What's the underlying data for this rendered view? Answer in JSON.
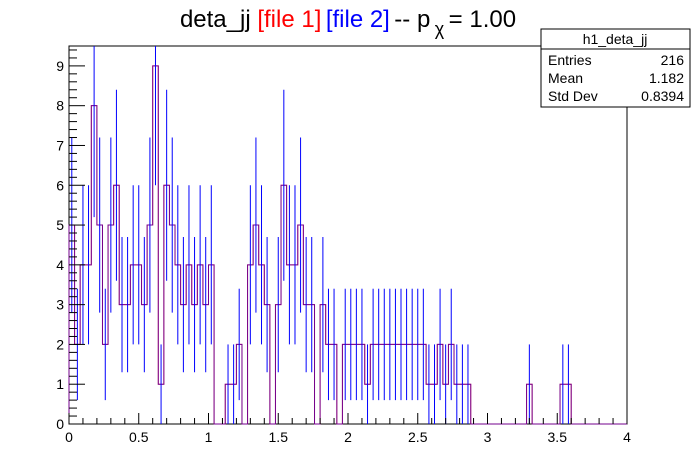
{
  "chart_data": {
    "type": "histogram",
    "title": {
      "prefix": "deta_jj ",
      "file1": "[file 1]",
      "file2": "[file 2]",
      "suffix_before_sub": " -- p",
      "subscript": "χ",
      "suffix_after_sub": " = 1.00"
    },
    "xlim": [
      0,
      4
    ],
    "ylim": [
      0,
      9.5
    ],
    "x_ticks": [
      "0",
      "0.5",
      "1",
      "1.5",
      "2",
      "2.5",
      "3",
      "3.5",
      "4"
    ],
    "y_ticks": [
      "0",
      "1",
      "2",
      "3",
      "4",
      "5",
      "6",
      "7",
      "8",
      "9"
    ],
    "bin_width": 0.04,
    "stats_box": {
      "name": "h1_deta_jj",
      "rows": [
        {
          "label": "Entries",
          "value": "216"
        },
        {
          "label": "Mean",
          "value": "1.182"
        },
        {
          "label": "Std Dev",
          "value": "0.8394"
        }
      ]
    },
    "series": [
      {
        "name": "file 1",
        "color": "#ff0000",
        "values": [
          5,
          2,
          4,
          4,
          8,
          5,
          2,
          5,
          6,
          3,
          3,
          4,
          4,
          3,
          5,
          9,
          1,
          6,
          5,
          4,
          3,
          4,
          3,
          4,
          3,
          4,
          0,
          0,
          1,
          1,
          2,
          0,
          4,
          5,
          4,
          3,
          0,
          3,
          6,
          4,
          4,
          5,
          3,
          3,
          0,
          3,
          2,
          2,
          0,
          2,
          2,
          2,
          2,
          1,
          2,
          2,
          2,
          2,
          2,
          2,
          2,
          2,
          2,
          2,
          1,
          1,
          2,
          1,
          2,
          1,
          1,
          1,
          0,
          0,
          0,
          0,
          0,
          0,
          0,
          0,
          0,
          0,
          1,
          0,
          0,
          0,
          0,
          0,
          1,
          1,
          0,
          0,
          0,
          0,
          0,
          0,
          0,
          0,
          0,
          0
        ]
      },
      {
        "name": "file 2",
        "color": "#0000ff",
        "values": [
          5,
          2,
          4,
          4,
          8,
          5,
          2,
          5,
          6,
          3,
          3,
          4,
          4,
          3,
          5,
          9,
          1,
          6,
          5,
          4,
          3,
          4,
          3,
          4,
          3,
          4,
          0,
          0,
          1,
          1,
          2,
          0,
          4,
          5,
          4,
          3,
          0,
          3,
          6,
          4,
          4,
          5,
          3,
          3,
          0,
          3,
          2,
          2,
          0,
          2,
          2,
          2,
          2,
          1,
          2,
          2,
          2,
          2,
          2,
          2,
          2,
          2,
          2,
          2,
          1,
          1,
          2,
          1,
          2,
          1,
          1,
          1,
          0,
          0,
          0,
          0,
          0,
          0,
          0,
          0,
          0,
          0,
          1,
          0,
          0,
          0,
          0,
          0,
          1,
          1,
          0,
          0,
          0,
          0,
          0,
          0,
          0,
          0,
          0,
          0
        ],
        "errors": [
          2.2,
          1.4,
          2.0,
          2.0,
          2.8,
          2.2,
          1.4,
          2.2,
          2.4,
          1.7,
          1.7,
          2.0,
          2.0,
          1.7,
          2.2,
          3.0,
          1.0,
          2.4,
          2.2,
          2.0,
          1.7,
          2.0,
          1.7,
          2.0,
          1.7,
          2.0,
          0,
          0,
          1.0,
          1.0,
          1.4,
          0,
          2.0,
          2.2,
          2.0,
          1.7,
          0,
          1.7,
          2.4,
          2.0,
          2.0,
          2.2,
          1.7,
          1.7,
          0,
          1.7,
          1.4,
          1.4,
          0,
          1.4,
          1.4,
          1.4,
          1.4,
          1.0,
          1.4,
          1.4,
          1.4,
          1.4,
          1.4,
          1.4,
          1.4,
          1.4,
          1.4,
          1.4,
          1.0,
          1.0,
          1.4,
          1.0,
          1.4,
          1.0,
          1.0,
          1.0,
          0,
          0,
          0,
          0,
          0,
          0,
          0,
          0,
          0,
          0,
          1.0,
          0,
          0,
          0,
          0,
          0,
          1.0,
          1.0,
          0,
          0,
          0,
          0,
          0,
          0,
          0,
          0,
          0,
          0
        ]
      }
    ]
  }
}
